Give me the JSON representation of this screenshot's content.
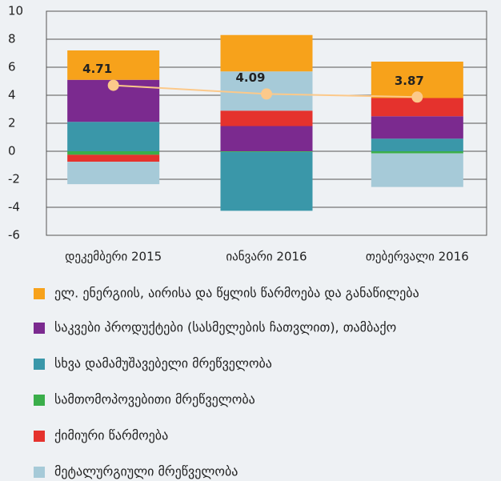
{
  "chart_data": {
    "type": "bar",
    "stacked": true,
    "categories": [
      "დეკემბერი 2015",
      "იანვარი 2016",
      "თებერვალი 2016"
    ],
    "series": [
      {
        "name": "ელ. ენერგიის, აირისა და წყლის  წარმოება და განაწილება",
        "color": "#f7a21b",
        "values": [
          2.1,
          2.6,
          2.6
        ]
      },
      {
        "name": "საკვები პროდუქტები (სასმელების ჩათვლით), თამბაქო",
        "color": "#7b2a8f",
        "values": [
          3.0,
          1.8,
          1.6
        ]
      },
      {
        "name": "სხვა დამამუშავებელი მრეწველობა",
        "color": "#3a97a9",
        "values": [
          2.1,
          -4.2,
          0.9
        ]
      },
      {
        "name": "სამთომოპოვებითი მრეწველობა",
        "color": "#3aae4a",
        "values": [
          -0.25,
          -0.05,
          -0.15
        ]
      },
      {
        "name": "ქიმიური წარმოება",
        "color": "#e5322d",
        "values": [
          -0.5,
          1.1,
          1.3
        ]
      },
      {
        "name": "მეტალურგიული მრეწველობა",
        "color": "#a6cad8",
        "values": [
          -1.6,
          2.8,
          -2.4
        ]
      }
    ],
    "line": {
      "color": "#fcc98a",
      "values": [
        4.71,
        4.09,
        3.87
      ]
    },
    "ylim": [
      -6,
      10
    ],
    "yticks": [
      -6,
      -4,
      -2,
      0,
      2,
      4,
      6,
      8,
      10
    ],
    "grid": true
  }
}
